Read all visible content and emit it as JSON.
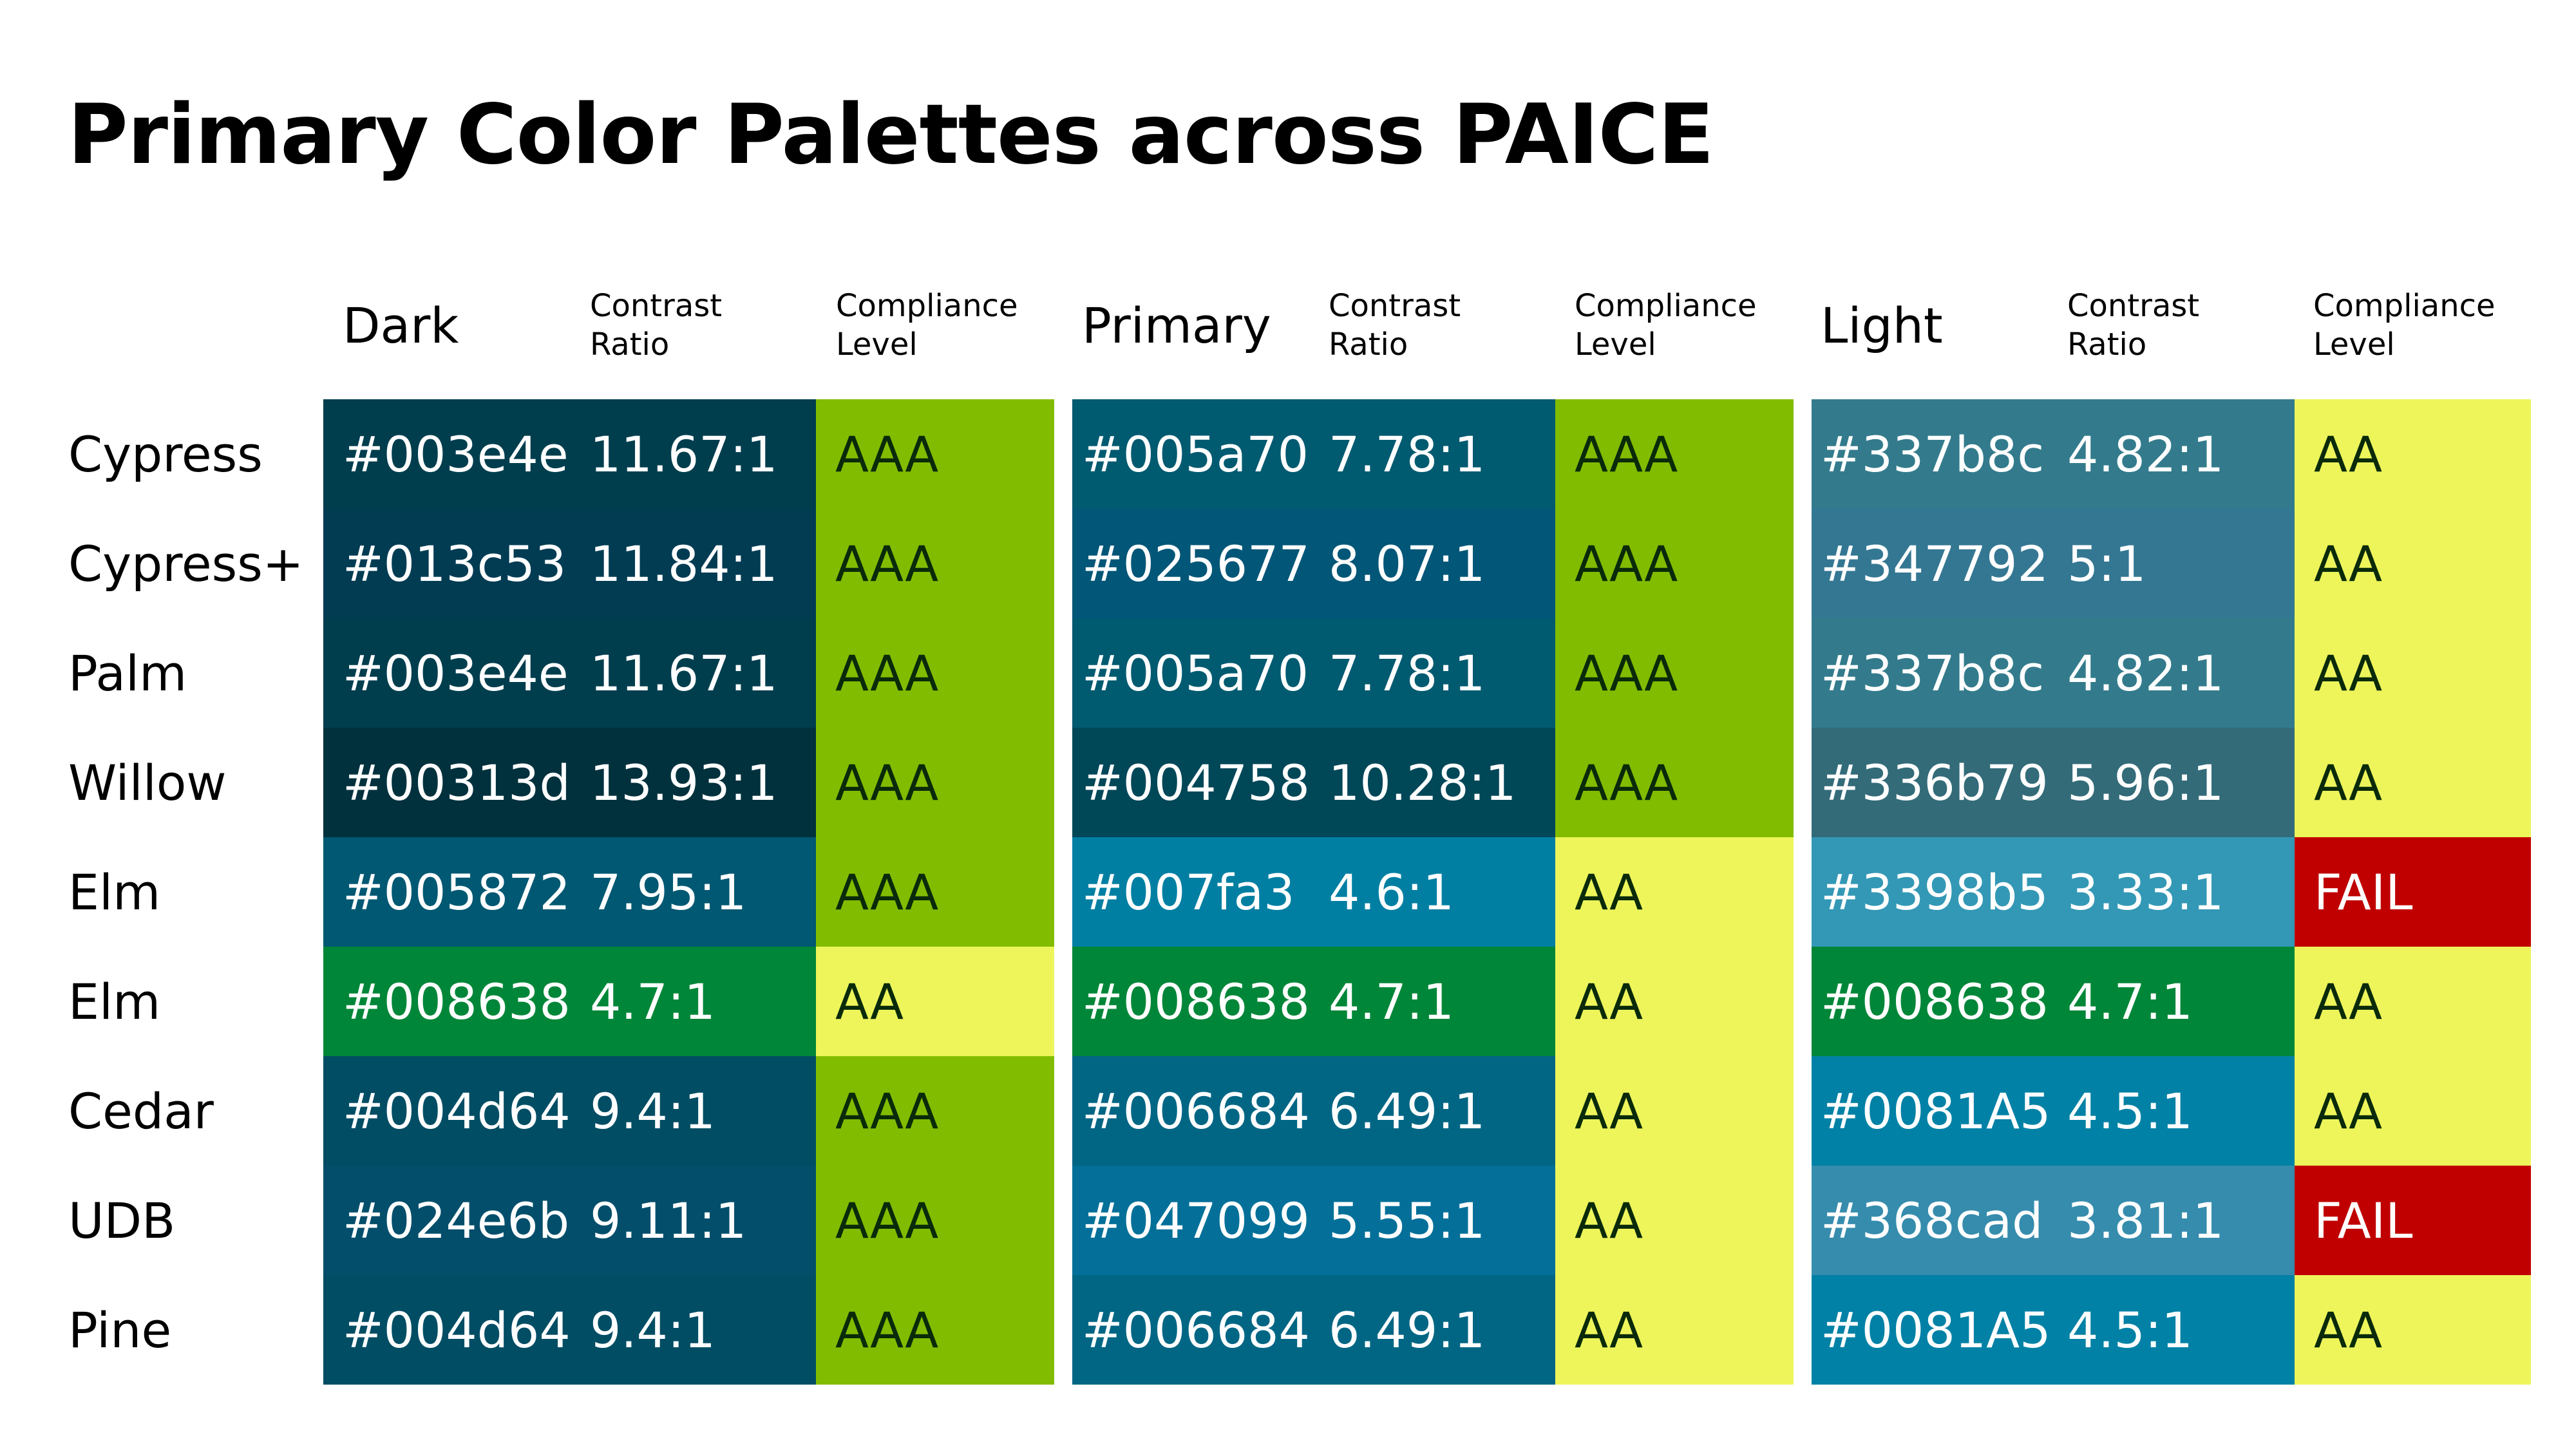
{
  "title": "Primary Color Palettes across PAICE",
  "columns": [
    {
      "name": "Dark",
      "contrast_label": "Contrast\nRatio",
      "compliance_label": "Compliance\nLevel"
    },
    {
      "name": "Primary",
      "contrast_label": "Contrast\nRatio",
      "compliance_label": "Compliance\nLevel"
    },
    {
      "name": "Light",
      "contrast_label": "Contrast\nRatio",
      "compliance_label": "Compliance\nLevel"
    }
  ],
  "level_colors": {
    "AAA": "#82bc00",
    "AA": "#edf55b",
    "FAIL": "#c00000"
  },
  "level_text_colors": {
    "AAA": "#0a2a0a",
    "AA": "#0a2a0a",
    "FAIL": "#ffffff"
  },
  "rows": [
    {
      "name": "Cypress",
      "dark": {
        "hex": "#003e4e",
        "ratio": "11.67:1",
        "level": "AAA"
      },
      "primary": {
        "hex": "#005a70",
        "ratio": "7.78:1",
        "level": "AAA"
      },
      "light": {
        "hex": "#337b8c",
        "ratio": "4.82:1",
        "level": "AA"
      }
    },
    {
      "name": "Cypress+",
      "dark": {
        "hex": "#013c53",
        "ratio": "11.84:1",
        "level": "AAA"
      },
      "primary": {
        "hex": "#025677",
        "ratio": "8.07:1",
        "level": "AAA"
      },
      "light": {
        "hex": "#347792",
        "ratio": "5:1",
        "level": "AA"
      }
    },
    {
      "name": "Palm",
      "dark": {
        "hex": "#003e4e",
        "ratio": "11.67:1",
        "level": "AAA"
      },
      "primary": {
        "hex": "#005a70",
        "ratio": "7.78:1",
        "level": "AAA"
      },
      "light": {
        "hex": "#337b8c",
        "ratio": "4.82:1",
        "level": "AA"
      }
    },
    {
      "name": "Willow",
      "dark": {
        "hex": "#00313d",
        "ratio": "13.93:1",
        "level": "AAA"
      },
      "primary": {
        "hex": "#004758",
        "ratio": "10.28:1",
        "level": "AAA"
      },
      "light": {
        "hex": "#336b79",
        "ratio": "5.96:1",
        "level": "AA"
      }
    },
    {
      "name": "Elm",
      "dark": {
        "hex": "#005872",
        "ratio": "7.95:1",
        "level": "AAA"
      },
      "primary": {
        "hex": "#007fa3",
        "ratio": "4.6:1",
        "level": "AA"
      },
      "light": {
        "hex": "#3398b5",
        "ratio": "3.33:1",
        "level": "FAIL"
      }
    },
    {
      "name": "Elm",
      "dark": {
        "hex": "#008638",
        "ratio": "4.7:1",
        "level": "AA"
      },
      "primary": {
        "hex": "#008638",
        "ratio": "4.7:1",
        "level": "AA"
      },
      "light": {
        "hex": "#008638",
        "ratio": "4.7:1",
        "level": "AA"
      }
    },
    {
      "name": "Cedar",
      "dark": {
        "hex": "#004d64",
        "ratio": "9.4:1",
        "level": "AAA"
      },
      "primary": {
        "hex": "#006684",
        "ratio": "6.49:1",
        "level": "AA"
      },
      "light": {
        "hex": "#0081A5",
        "ratio": "4.5:1",
        "level": "AA"
      }
    },
    {
      "name": "UDB",
      "dark": {
        "hex": "#024e6b",
        "ratio": "9.11:1",
        "level": "AAA"
      },
      "primary": {
        "hex": "#047099",
        "ratio": "5.55:1",
        "level": "AA"
      },
      "light": {
        "hex": "#368cad",
        "ratio": "3.81:1",
        "level": "FAIL"
      }
    },
    {
      "name": "Pine",
      "dark": {
        "hex": "#004d64",
        "ratio": "9.4:1",
        "level": "AAA"
      },
      "primary": {
        "hex": "#006684",
        "ratio": "6.49:1",
        "level": "AA"
      },
      "light": {
        "hex": "#0081A5",
        "ratio": "4.5:1",
        "level": "AA"
      }
    }
  ]
}
